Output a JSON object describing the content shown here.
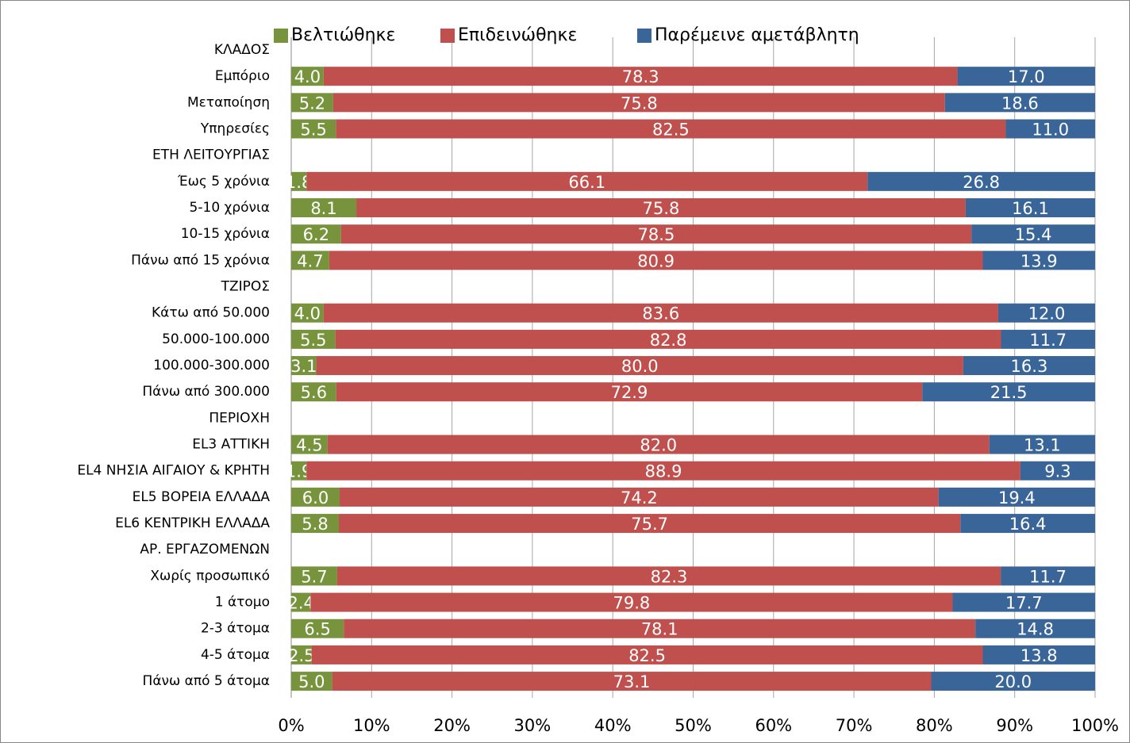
{
  "chart_data": {
    "type": "stacked-bar-horizontal",
    "stack": "percent",
    "grid": true,
    "legend": "top",
    "categories": [
      "ΚΛΑΔΟΣ",
      "Εμπόριο",
      "Μεταποίηση",
      "Υπηρεσίες",
      "ΕΤΗ ΛΕΙΤΟΥΡΓΙΑΣ",
      "Έως 5 χρόνια",
      "5-10 χρόνια",
      "10-15 χρόνια",
      "Πάνω από 15 χρόνια",
      "ΤΖΙΡΟΣ",
      "Κάτω από 50.000",
      "50.000-100.000",
      "100.000-300.000",
      "Πάνω από 300.000",
      "ΠΕΡΙΟΧΗ",
      "EL3 ΑΤΤΙΚΗ",
      "EL4 ΝΗΣΙΑ ΑΙΓΑΙΟΥ & ΚΡΗΤΗ",
      "EL5 ΒΟΡΕΙΑ ΕΛΛΑΔΑ",
      "EL6 ΚΕΝΤΡΙΚΗ ΕΛΛΑΔΑ",
      "ΑΡ. ΕΡΓΑΖΟΜΕΝΩΝ",
      "Χωρίς προσωπικό",
      "1 άτομο",
      "2-3 άτομα",
      "4-5 άτομα",
      "Πάνω από 5 άτομα"
    ],
    "series": [
      {
        "name": "Βελτιώθηκε",
        "color": "#77933c",
        "values": [
          null,
          4.0,
          5.2,
          5.5,
          null,
          1.8,
          8.1,
          6.2,
          4.7,
          null,
          4.0,
          5.5,
          3.1,
          5.6,
          null,
          4.5,
          1.9,
          6.0,
          5.8,
          null,
          5.7,
          2.4,
          6.5,
          2.5,
          5.0
        ],
        "value_labels": [
          null,
          "4.0",
          "5.2",
          "5.5",
          null,
          "1.8",
          "8.1",
          "6.2",
          "4.7",
          null,
          "4.0",
          "5.5",
          "3.1",
          "5.6",
          null,
          "4.5",
          "1.9",
          "6.0",
          "5.8",
          null,
          "5.7",
          "2.4",
          "6.5",
          "2.5",
          "5.0"
        ]
      },
      {
        "name": "Επιδεινώθηκε",
        "color": "#c0504d",
        "values": [
          null,
          78.3,
          75.8,
          82.5,
          null,
          66.1,
          75.8,
          78.5,
          80.9,
          null,
          83.6,
          82.8,
          80.0,
          72.9,
          null,
          82.0,
          88.9,
          74.2,
          75.7,
          null,
          82.3,
          79.8,
          78.1,
          82.5,
          73.1
        ],
        "value_labels": [
          null,
          "78.3",
          "75.8",
          "82.5",
          null,
          "66.1",
          "75.8",
          "78.5",
          "80.9",
          null,
          "83.6",
          "82.8",
          "80.0",
          "72.9",
          null,
          "82.0",
          "88.9",
          "74.2",
          "75.7",
          null,
          "82.3",
          "79.8",
          "78.1",
          "82.5",
          "73.1"
        ]
      },
      {
        "name": "Παρέμεινε αμετάβλητη",
        "color": "#3a6599",
        "values": [
          null,
          17.0,
          18.6,
          11.0,
          null,
          26.8,
          16.1,
          15.4,
          13.9,
          null,
          12.0,
          11.7,
          16.3,
          21.5,
          null,
          13.1,
          9.3,
          19.4,
          16.4,
          null,
          11.7,
          17.7,
          14.8,
          13.8,
          20.0
        ],
        "value_labels": [
          null,
          "17.0",
          "18.6",
          "11.0",
          null,
          "26.8",
          "16.1",
          "15.4",
          "13.9",
          null,
          "12.0",
          "11.7",
          "16.3",
          "21.5",
          null,
          "13.1",
          "9.3",
          "19.4",
          "16.4",
          null,
          "11.7",
          "17.7",
          "14.8",
          "13.8",
          "20.0"
        ]
      }
    ],
    "xlim": [
      0,
      100
    ],
    "xticks": [
      {
        "value": 0,
        "label": "0%"
      },
      {
        "value": 10,
        "label": "10%"
      },
      {
        "value": 20,
        "label": "20%"
      },
      {
        "value": 30,
        "label": "30%"
      },
      {
        "value": 40,
        "label": "40%"
      },
      {
        "value": 50,
        "label": "50%"
      },
      {
        "value": 60,
        "label": "60%"
      },
      {
        "value": 70,
        "label": "70%"
      },
      {
        "value": 80,
        "label": "80%"
      },
      {
        "value": 90,
        "label": "90%"
      },
      {
        "value": 100,
        "label": "100%"
      }
    ]
  }
}
